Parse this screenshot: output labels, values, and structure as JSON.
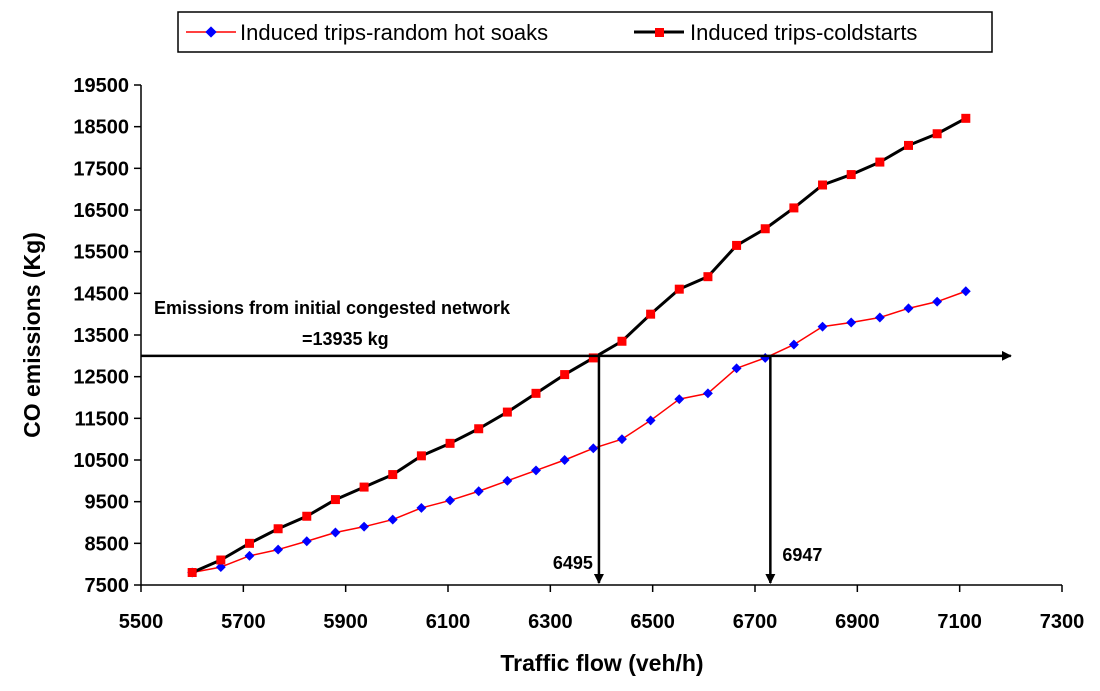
{
  "chart_data": {
    "type": "line",
    "title": "",
    "xlabel": "Traffic flow (veh/h)",
    "ylabel": "CO emissions (Kg)",
    "xlim": [
      5500,
      7300
    ],
    "ylim": [
      7500,
      19500
    ],
    "x_ticks": [
      5500,
      5700,
      5900,
      6100,
      6300,
      6500,
      6700,
      6900,
      7100,
      7300
    ],
    "y_ticks": [
      7500,
      8500,
      9500,
      10500,
      11500,
      12500,
      13500,
      14500,
      15500,
      16500,
      17500,
      18500,
      19500
    ],
    "grid": false,
    "legend_position": "top",
    "series": [
      {
        "name": "Induced trips-random hot soaks",
        "color": "#ff0000",
        "marker_color": "#0000ff",
        "marker": "diamond",
        "x": [
          5600,
          5656,
          5712,
          5768,
          5824,
          5880,
          5936,
          5992,
          6048,
          6104,
          6160,
          6216,
          6272,
          6328,
          6384,
          6440,
          6496,
          6552,
          6608,
          6664,
          6720,
          6776,
          6832,
          6888,
          6944,
          7000,
          7056,
          7112
        ],
        "values": [
          7800,
          7930,
          8200,
          8350,
          8550,
          8760,
          8900,
          9070,
          9350,
          9530,
          9750,
          10000,
          10250,
          10500,
          10780,
          11000,
          11450,
          11960,
          12100,
          12700,
          12950,
          13270,
          13700,
          13800,
          13920,
          14140,
          14300,
          14550
        ]
      },
      {
        "name": "Induced trips-coldstarts",
        "color": "#000000",
        "marker_color": "#ff0000",
        "marker": "square",
        "x": [
          5600,
          5656,
          5712,
          5768,
          5824,
          5880,
          5936,
          5992,
          6048,
          6104,
          6160,
          6216,
          6272,
          6328,
          6384,
          6440,
          6496,
          6552,
          6608,
          6664,
          6720,
          6776,
          6832,
          6888,
          6944,
          7000,
          7056,
          7112
        ],
        "values": [
          7800,
          8100,
          8500,
          8850,
          9150,
          9550,
          9850,
          10150,
          10600,
          10900,
          11250,
          11650,
          12100,
          12550,
          12950,
          13350,
          14000,
          14600,
          14900,
          15650,
          16050,
          16550,
          17100,
          17350,
          17650,
          18050,
          18330,
          18700
        ]
      }
    ],
    "annotations": {
      "line1": "Emissions from initial congested network",
      "line2": "=13935 kg",
      "level": 13000,
      "arrow_end_x": 7200,
      "drop1": {
        "x": 6395,
        "label": "6495"
      },
      "drop2": {
        "x": 6730,
        "label": "6947"
      }
    }
  }
}
